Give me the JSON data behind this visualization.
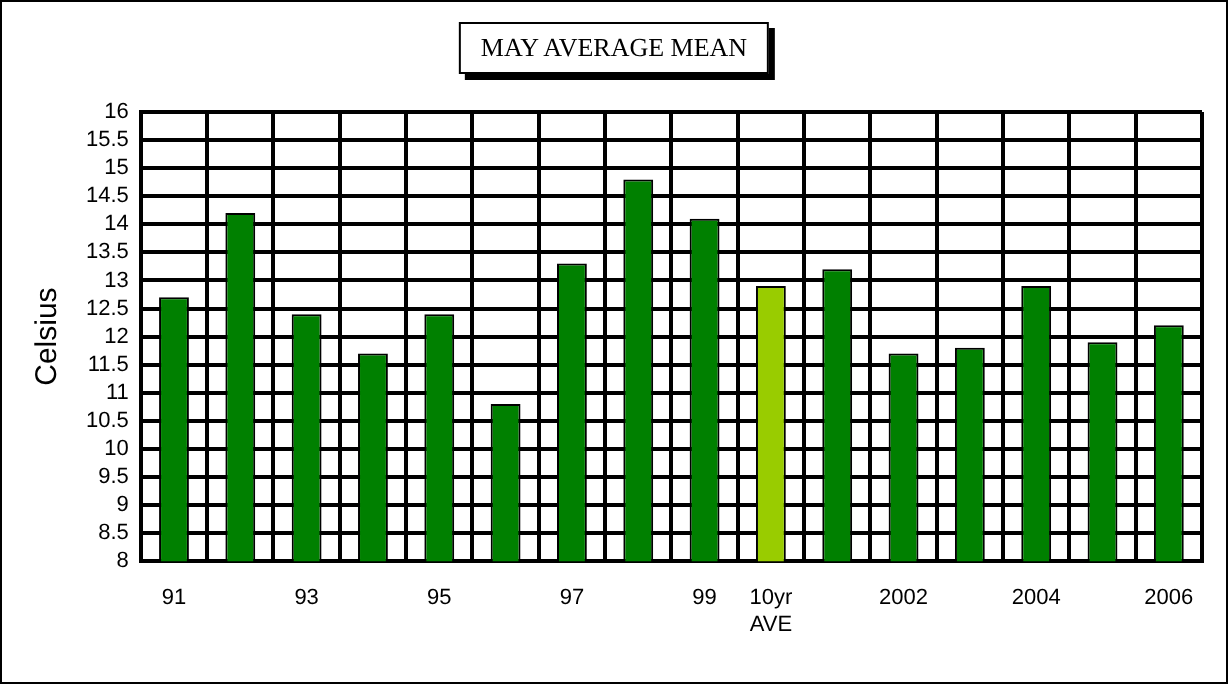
{
  "chart_data": {
    "type": "bar",
    "title": "MAY AVERAGE MEAN",
    "ylabel": "Celsius",
    "categories": [
      "91",
      null,
      "93",
      null,
      "95",
      null,
      "97",
      null,
      "99",
      "10yr\nAVE",
      null,
      "2002",
      null,
      "2004",
      null,
      "2006"
    ],
    "values": [
      12.7,
      14.2,
      12.4,
      11.7,
      12.4,
      10.8,
      13.3,
      14.8,
      14.1,
      12.9,
      13.2,
      11.7,
      11.8,
      12.9,
      11.9,
      12.2
    ],
    "colors": [
      "#008000",
      "#008000",
      "#008000",
      "#008000",
      "#008000",
      "#008000",
      "#008000",
      "#008000",
      "#008000",
      "#99cc00",
      "#008000",
      "#008000",
      "#008000",
      "#008000",
      "#008000",
      "#008000"
    ],
    "ylim": [
      8,
      16
    ],
    "yticks": [
      8,
      8.5,
      9,
      9.5,
      10,
      10.5,
      11,
      11.5,
      12,
      12.5,
      13,
      13.5,
      14,
      14.5,
      15,
      15.5,
      16
    ],
    "grid": true,
    "legend": false
  }
}
